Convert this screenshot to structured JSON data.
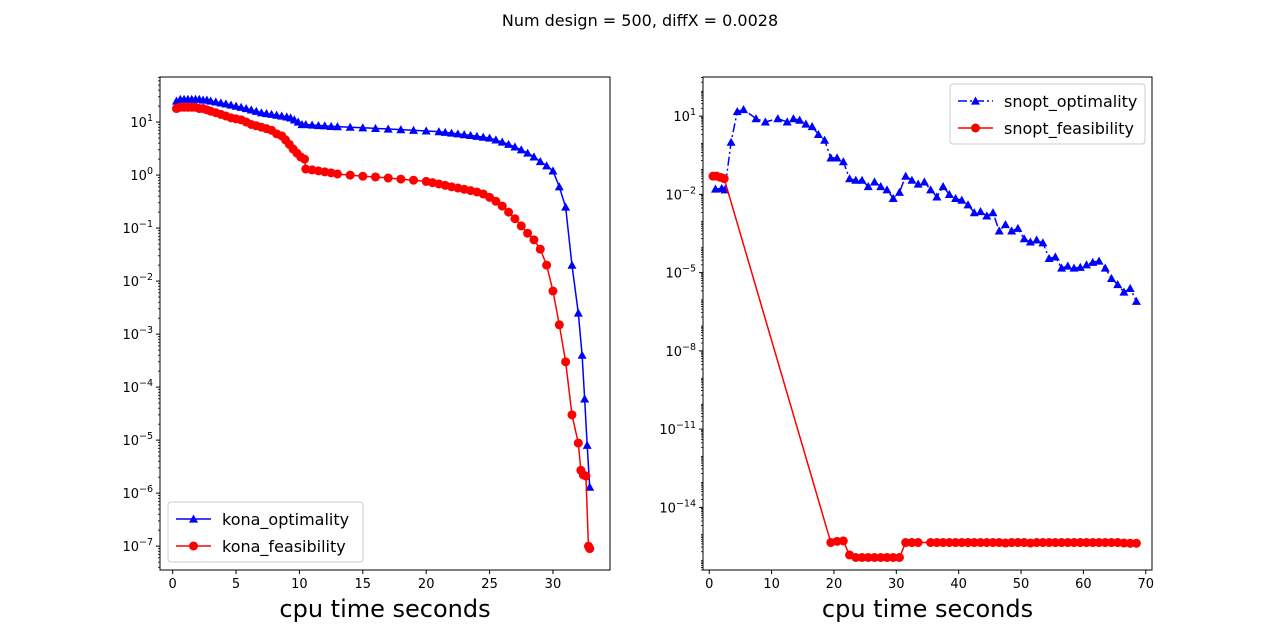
{
  "figure": {
    "suptitle": "Num design = 500, diffX = 0.0028"
  },
  "chart_data": [
    {
      "type": "line",
      "yscale": "log",
      "xlabel": "cpu time seconds",
      "xlim": [
        -1,
        34.5
      ],
      "ylim_log10": [
        -7.45,
        1.85
      ],
      "xticks": [
        0,
        5,
        10,
        15,
        20,
        25,
        30
      ],
      "yticks_exp": [
        -7,
        -6,
        -5,
        -4,
        -3,
        -2,
        -1,
        0,
        1
      ],
      "legend_position": "lower-left",
      "series": [
        {
          "name": "kona_optimality",
          "color": "#0000ff",
          "marker": "triangle",
          "linestyle": "solid",
          "x": [
            0.3,
            0.6,
            0.9,
            1.2,
            1.5,
            1.8,
            2.1,
            2.4,
            2.7,
            3.0,
            3.4,
            3.8,
            4.2,
            4.6,
            5.0,
            5.4,
            5.8,
            6.2,
            6.6,
            7.0,
            7.4,
            7.8,
            8.2,
            8.6,
            9.0,
            9.3,
            9.6,
            9.9,
            10.2,
            10.5,
            11.0,
            11.5,
            12.0,
            12.5,
            13.0,
            14.0,
            15.0,
            16.0,
            17.0,
            18.0,
            19.0,
            20.0,
            21.0,
            21.5,
            22.0,
            22.5,
            23.0,
            23.5,
            24.0,
            24.5,
            25.0,
            25.5,
            26.0,
            26.5,
            27.0,
            27.5,
            28.0,
            28.5,
            29.0,
            29.5,
            30.0,
            30.5,
            31.0,
            31.5,
            32.0,
            32.3,
            32.5,
            32.7,
            32.9
          ],
          "y": [
            25,
            27,
            27,
            27,
            27,
            27,
            27,
            26,
            26,
            25,
            24,
            23,
            22,
            21,
            20,
            19,
            18,
            17,
            16,
            15,
            14.5,
            14,
            13.5,
            13,
            12.5,
            12,
            11,
            10,
            9,
            9,
            8.8,
            8.6,
            8.5,
            8.3,
            8.2,
            8.0,
            7.8,
            7.6,
            7.4,
            7.2,
            7.0,
            6.8,
            6.6,
            6.4,
            6.2,
            6.0,
            5.8,
            5.6,
            5.4,
            5.2,
            5.0,
            4.6,
            4.2,
            3.8,
            3.4,
            3.0,
            2.6,
            2.2,
            1.8,
            1.5,
            1.2,
            0.6,
            0.25,
            0.02,
            0.0025,
            0.0004,
            6e-05,
            8e-06,
            1.3e-06
          ]
        },
        {
          "name": "kona_feasibility",
          "color": "#ff0000",
          "marker": "circle",
          "linestyle": "solid",
          "x": [
            0.3,
            0.6,
            0.9,
            1.2,
            1.5,
            1.8,
            2.1,
            2.4,
            2.7,
            3.0,
            3.4,
            3.8,
            4.2,
            4.6,
            5.0,
            5.4,
            5.8,
            6.2,
            6.6,
            7.0,
            7.4,
            7.8,
            8.2,
            8.6,
            8.9,
            9.2,
            9.5,
            9.8,
            10.1,
            10.4,
            10.5,
            11.0,
            11.5,
            12.0,
            12.5,
            13.0,
            14.0,
            15.0,
            16.0,
            17.0,
            18.0,
            19.0,
            20.0,
            20.5,
            21.0,
            21.5,
            22.0,
            22.5,
            23.0,
            23.5,
            24.0,
            24.5,
            25.0,
            25.5,
            26.0,
            26.5,
            27.0,
            27.5,
            28.0,
            28.5,
            29.0,
            29.5,
            30.0,
            30.5,
            31.0,
            31.5,
            32.0,
            32.2,
            32.4,
            32.6,
            32.8,
            32.9
          ],
          "y": [
            18,
            19,
            19,
            19,
            19,
            19,
            18,
            18,
            17,
            16,
            15,
            14,
            13,
            12,
            11.5,
            11,
            10,
            9,
            8.5,
            8,
            7.5,
            7,
            6,
            5.5,
            4.6,
            3.8,
            3.1,
            2.6,
            2.2,
            2.0,
            1.3,
            1.25,
            1.2,
            1.15,
            1.1,
            1.05,
            1.0,
            0.95,
            0.92,
            0.88,
            0.84,
            0.8,
            0.76,
            0.72,
            0.68,
            0.64,
            0.6,
            0.57,
            0.54,
            0.51,
            0.48,
            0.44,
            0.38,
            0.32,
            0.26,
            0.2,
            0.15,
            0.11,
            0.08,
            0.06,
            0.04,
            0.02,
            0.0065,
            0.0015,
            0.0003,
            3e-05,
            8.8e-06,
            2.7e-06,
            2.2e-06,
            2.1e-06,
            1e-07,
            9e-08
          ]
        }
      ]
    },
    {
      "type": "line",
      "yscale": "log",
      "xlabel": "cpu time seconds",
      "xlim": [
        -1,
        71
      ],
      "ylim_log10": [
        -16.4,
        2.5
      ],
      "xticks": [
        0,
        10,
        20,
        30,
        40,
        50,
        60,
        70
      ],
      "yticks_exp": [
        -14,
        -11,
        -8,
        -5,
        -2,
        1
      ],
      "legend_position": "upper-right",
      "series": [
        {
          "name": "snopt_optimality",
          "color": "#0000ff",
          "marker": "triangle",
          "linestyle": "dashdot",
          "x": [
            1.0,
            2.0,
            2.5,
            3.5,
            4.5,
            5.5,
            7.5,
            9.0,
            11.0,
            12.5,
            13.5,
            14.5,
            15.5,
            16.5,
            17.5,
            18.5,
            19.5,
            20.5,
            21.5,
            22.5,
            23.5,
            24.5,
            25.5,
            26.5,
            27.5,
            28.5,
            29.5,
            30.5,
            31.5,
            32.5,
            33.5,
            34.5,
            35.5,
            36.5,
            37.5,
            38.5,
            39.5,
            40.5,
            41.5,
            42.5,
            43.5,
            44.5,
            45.5,
            46.5,
            47.5,
            48.5,
            49.5,
            50.5,
            51.5,
            52.5,
            53.5,
            54.5,
            55.5,
            56.5,
            57.5,
            58.5,
            59.5,
            60.5,
            61.5,
            62.5,
            63.5,
            64.5,
            65.5,
            66.5,
            67.5,
            68.5
          ],
          "y": [
            0.016,
            0.017,
            0.015,
            1.0,
            15,
            18,
            8,
            6,
            8,
            6,
            8,
            7,
            5,
            4,
            2.0,
            1.2,
            0.25,
            0.25,
            0.18,
            0.04,
            0.035,
            0.035,
            0.02,
            0.03,
            0.02,
            0.015,
            0.007,
            0.012,
            0.05,
            0.035,
            0.025,
            0.03,
            0.015,
            0.008,
            0.02,
            0.01,
            0.007,
            0.006,
            0.004,
            0.002,
            0.0022,
            0.0015,
            0.002,
            0.0004,
            0.0007,
            0.0004,
            0.0005,
            0.0002,
            0.00015,
            0.00018,
            0.00014,
            3.5e-05,
            4e-05,
            1.5e-05,
            1.8e-05,
            1.5e-05,
            1.6e-05,
            2e-05,
            2.5e-05,
            2.8e-05,
            1.5e-05,
            6e-06,
            3.5e-06,
            1.8e-06,
            2.5e-06,
            8e-07
          ]
        },
        {
          "name": "snopt_feasibility",
          "color": "#ff0000",
          "marker": "circle",
          "linestyle": "solid",
          "x": [
            0.6,
            1.2,
            1.8,
            2.4,
            19.5,
            20.5,
            21.5,
            22.5,
            23.5,
            24.5,
            25.5,
            26.5,
            27.5,
            28.5,
            29.5,
            30.5,
            31.5,
            32.5,
            33.5,
            35.5,
            36.5,
            37.5,
            38.5,
            39.5,
            40.5,
            41.5,
            42.5,
            43.5,
            44.5,
            45.5,
            46.5,
            47.5,
            48.5,
            49.5,
            50.5,
            51.5,
            52.5,
            53.5,
            54.5,
            55.5,
            56.5,
            57.5,
            58.5,
            59.5,
            60.5,
            61.5,
            62.5,
            63.5,
            64.5,
            65.5,
            66.5,
            67.5,
            68.5
          ],
          "y": [
            0.05,
            0.05,
            0.045,
            0.04,
            4.5e-16,
            5e-16,
            5.2e-16,
            1.5e-16,
            1.2e-16,
            1.2e-16,
            1.2e-16,
            1.2e-16,
            1.2e-16,
            1.2e-16,
            1.2e-16,
            1.2e-16,
            4.5e-16,
            4.5e-16,
            4.5e-16,
            4.5e-16,
            4.5e-16,
            4.5e-16,
            4.5e-16,
            4.5e-16,
            4.5e-16,
            4.5e-16,
            4.5e-16,
            4.5e-16,
            4.5e-16,
            4.5e-16,
            4.5e-16,
            4.3e-16,
            4.5e-16,
            4.5e-16,
            4.5e-16,
            4.3e-16,
            4.5e-16,
            4.5e-16,
            4.5e-16,
            4.5e-16,
            4.5e-16,
            4.5e-16,
            4.5e-16,
            4.5e-16,
            4.5e-16,
            4.5e-16,
            4.5e-16,
            4.5e-16,
            4.5e-16,
            4.5e-16,
            4.3e-16,
            4.2e-16,
            4.2e-16
          ]
        }
      ]
    }
  ]
}
